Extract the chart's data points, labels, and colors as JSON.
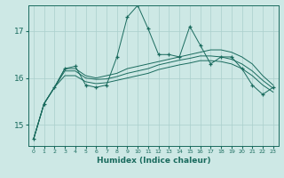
{
  "xlabel": "Humidex (Indice chaleur)",
  "bg_color": "#cde8e5",
  "line_color": "#1a6b5e",
  "grid_color": "#aacfcc",
  "xlim": [
    -0.5,
    23.5
  ],
  "ylim": [
    14.55,
    17.55
  ],
  "yticks": [
    15,
    16,
    17
  ],
  "xticks": [
    0,
    1,
    2,
    3,
    4,
    5,
    6,
    7,
    8,
    9,
    10,
    11,
    12,
    13,
    14,
    15,
    16,
    17,
    18,
    19,
    20,
    21,
    22,
    23
  ],
  "jagged": [
    14.7,
    15.45,
    15.8,
    16.2,
    16.25,
    15.85,
    15.8,
    15.85,
    16.45,
    17.3,
    17.55,
    17.05,
    16.5,
    16.5,
    16.45,
    17.1,
    16.7,
    16.3,
    16.45,
    16.45,
    16.2,
    15.85,
    15.65,
    15.8
  ],
  "smooth1": [
    14.7,
    15.45,
    15.8,
    16.2,
    16.2,
    16.05,
    16.0,
    16.05,
    16.1,
    16.2,
    16.25,
    16.3,
    16.35,
    16.4,
    16.45,
    16.5,
    16.55,
    16.6,
    16.6,
    16.55,
    16.45,
    16.3,
    16.05,
    15.85
  ],
  "smooth2": [
    14.7,
    15.45,
    15.8,
    16.15,
    16.15,
    16.0,
    15.97,
    15.98,
    16.03,
    16.1,
    16.15,
    16.2,
    16.28,
    16.33,
    16.38,
    16.42,
    16.47,
    16.47,
    16.45,
    16.4,
    16.3,
    16.15,
    15.95,
    15.78
  ],
  "smooth3": [
    14.7,
    15.45,
    15.8,
    16.05,
    16.05,
    15.92,
    15.88,
    15.9,
    15.95,
    16.0,
    16.05,
    16.1,
    16.18,
    16.23,
    16.28,
    16.32,
    16.37,
    16.37,
    16.35,
    16.3,
    16.2,
    16.05,
    15.85,
    15.7
  ]
}
